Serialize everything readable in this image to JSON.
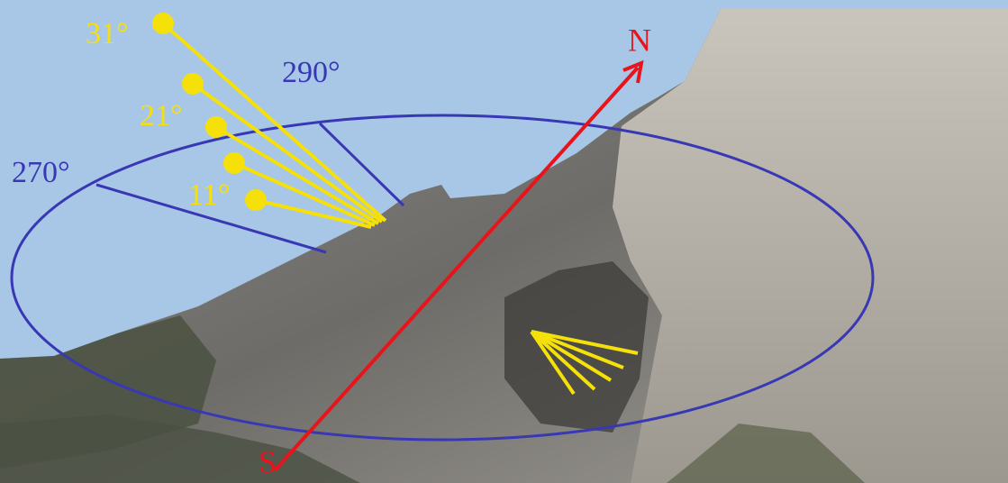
{
  "annotations": {
    "compass": {
      "north": "N",
      "south": "S"
    },
    "azimuths": [
      "270°",
      "290°"
    ],
    "elevations": [
      "31°",
      "21°",
      "11°"
    ]
  }
}
